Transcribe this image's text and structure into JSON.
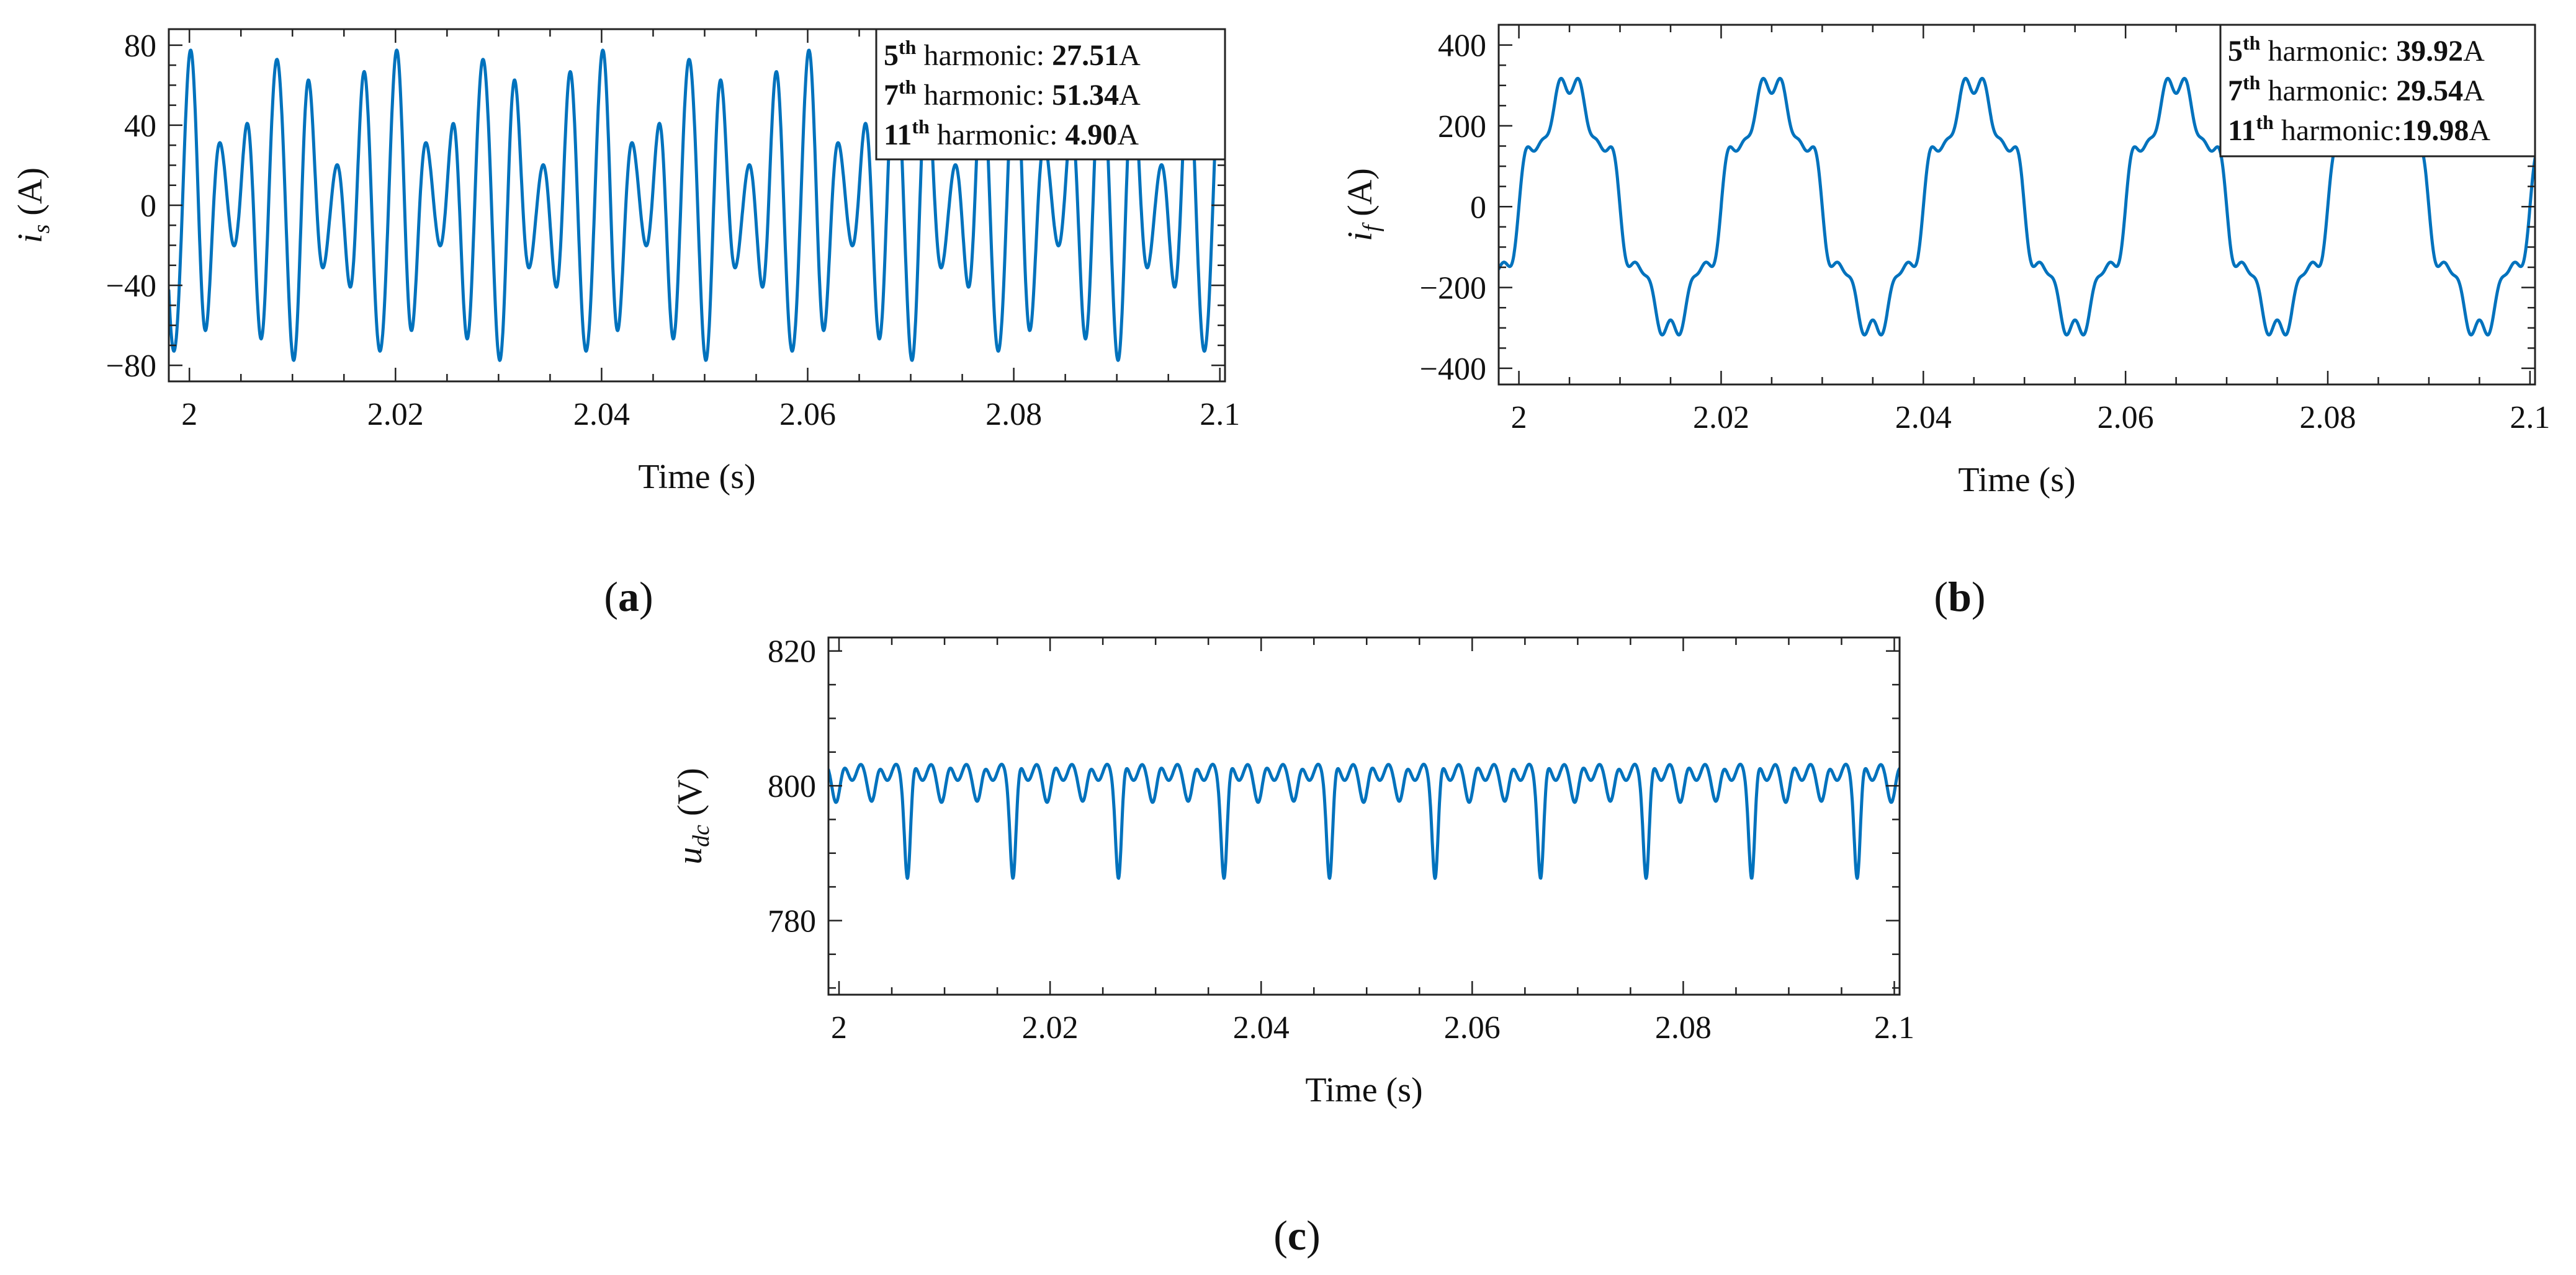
{
  "chart_data": [
    {
      "id": "a",
      "type": "line",
      "caption": "a",
      "xlabel": "Time (s)",
      "ylabel": {
        "main": "i",
        "sub": "s",
        "unit": "(A)"
      },
      "xlim": [
        1.998,
        2.1005
      ],
      "ylim": [
        -88,
        88
      ],
      "xticks": [
        2,
        2.02,
        2.04,
        2.06,
        2.08,
        2.1
      ],
      "xtick_labels": [
        "2",
        "2.02",
        "2.04",
        "2.06",
        "2.08",
        "2.1"
      ],
      "yticks": [
        80,
        40,
        0,
        -40,
        -80
      ],
      "ytick_labels": [
        "80",
        "40",
        "0",
        "−40",
        "−80"
      ],
      "legend": [
        {
          "order": "5",
          "sup": "th",
          "label": " harmonic: ",
          "value": "27.51",
          "unit": "A"
        },
        {
          "order": "7",
          "sup": "th",
          "label": " harmonic: ",
          "value": "51.34",
          "unit": "A"
        },
        {
          "order": "11",
          "sup": "th",
          "label": " harmonic: ",
          "value": "4.90",
          "unit": "A"
        }
      ],
      "series": [
        {
          "name": "i_s",
          "color": "#0072BD",
          "model": {
            "x0": 1.998,
            "x1": 2.1005,
            "fundamental_hz": 50,
            "components": [
              {
                "harmonic": 5,
                "amplitude": 27.51,
                "phase_deg": 60
              },
              {
                "harmonic": 7,
                "amplitude": 51.34,
                "phase_deg": 90
              },
              {
                "harmonic": 11,
                "amplitude": 4.9,
                "phase_deg": 0
              }
            ]
          }
        }
      ]
    },
    {
      "id": "b",
      "type": "line",
      "caption": "b",
      "xlabel": "Time (s)",
      "ylabel": {
        "main": "i",
        "sub": "f",
        "unit": "(A)"
      },
      "xlim": [
        1.998,
        2.1005
      ],
      "ylim": [
        -440,
        450
      ],
      "xticks": [
        2,
        2.02,
        2.04,
        2.06,
        2.08,
        2.1
      ],
      "xtick_labels": [
        "2",
        "2.02",
        "2.04",
        "2.06",
        "2.08",
        "2.1"
      ],
      "yticks": [
        400,
        200,
        0,
        -200,
        -400
      ],
      "ytick_labels": [
        "400",
        "200",
        "0",
        "−200",
        "−400"
      ],
      "legend": [
        {
          "order": "5",
          "sup": "th",
          "label": " harmonic: ",
          "value": "39.92",
          "unit": "A"
        },
        {
          "order": "7",
          "sup": "th",
          "label": " harmonic: ",
          "value": "29.54",
          "unit": "A"
        },
        {
          "order": "11",
          "sup": "th",
          "label": " harmonic:",
          "value": "19.98",
          "unit": "A"
        }
      ],
      "series": [
        {
          "name": "i_f",
          "color": "#0072BD",
          "model": {
            "x0": 1.998,
            "x1": 2.1005,
            "fundamental_hz": 50,
            "components": [
              {
                "harmonic": 1,
                "amplitude": 290,
                "phase_deg": 0
              },
              {
                "harmonic": 5,
                "amplitude": 39.92,
                "phase_deg": 0
              },
              {
                "harmonic": 7,
                "amplitude": 29.54,
                "phase_deg": 0
              },
              {
                "harmonic": 11,
                "amplitude": 19.98,
                "phase_deg": 0
              }
            ]
          }
        }
      ]
    },
    {
      "id": "c",
      "type": "line",
      "caption": "c",
      "xlabel": "Time (s)",
      "ylabel": {
        "main": "u",
        "sub": "dc",
        "unit": "(V)"
      },
      "xlim": [
        1.999,
        2.1005
      ],
      "ylim": [
        769,
        822
      ],
      "xticks": [
        2,
        2.02,
        2.04,
        2.06,
        2.08,
        2.1
      ],
      "xtick_labels": [
        "2",
        "2.02",
        "2.04",
        "2.06",
        "2.08",
        "2.1"
      ],
      "yticks": [
        820,
        800,
        780
      ],
      "ytick_labels": [
        "820",
        "800",
        "780"
      ],
      "legend": [],
      "series": [
        {
          "name": "u_dc",
          "color": "#0072BD",
          "model": {
            "x0": 1.999,
            "x1": 2.1005,
            "base": 802,
            "ripple_hz": 600,
            "ripple_amp": 1.2,
            "dip_period_s": 0.01,
            "dip_first_s": 2.0065,
            "dip_depth": 15,
            "dip_width_s": 0.0004
          }
        }
      ]
    }
  ]
}
